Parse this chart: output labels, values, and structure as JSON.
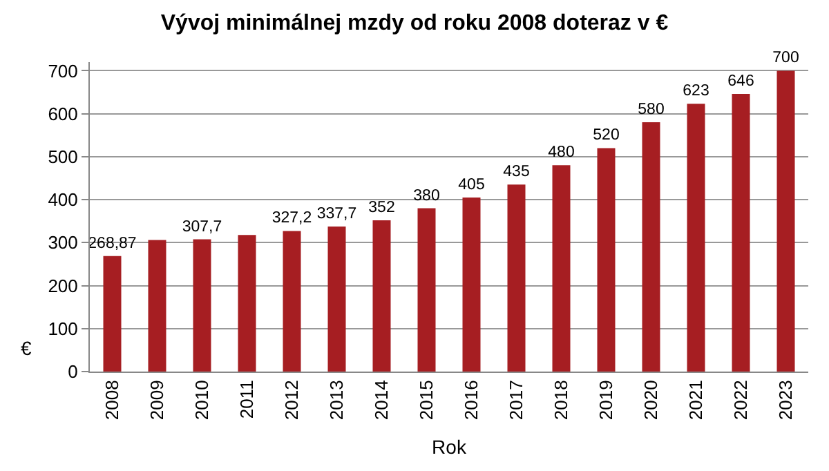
{
  "chart_data": {
    "type": "bar",
    "title": "Vývoj minimálnej mzdy od roku 2008 doteraz v €",
    "xlabel": "Rok",
    "ylabel": "€",
    "categories": [
      "2008",
      "2009",
      "2010",
      "2011",
      "2012",
      "2013",
      "2014",
      "2015",
      "2016",
      "2017",
      "2018",
      "2019",
      "2020",
      "2021",
      "2022",
      "2023"
    ],
    "values": [
      268.87,
      306,
      307.7,
      318,
      327.2,
      337.7,
      352,
      380,
      405,
      435,
      480,
      520,
      580,
      623,
      646,
      700
    ],
    "value_labels": [
      "268,87",
      null,
      "307,7",
      null,
      "327,2",
      "337,7",
      "352",
      "380",
      "405",
      "435",
      "480",
      "520",
      "580",
      "623",
      "646",
      "700"
    ],
    "color": "#a61e22",
    "ylim": [
      0,
      720
    ],
    "yticks": [
      0,
      100,
      200,
      300,
      400,
      500,
      600,
      700
    ],
    "grid": "y",
    "legend": false
  }
}
